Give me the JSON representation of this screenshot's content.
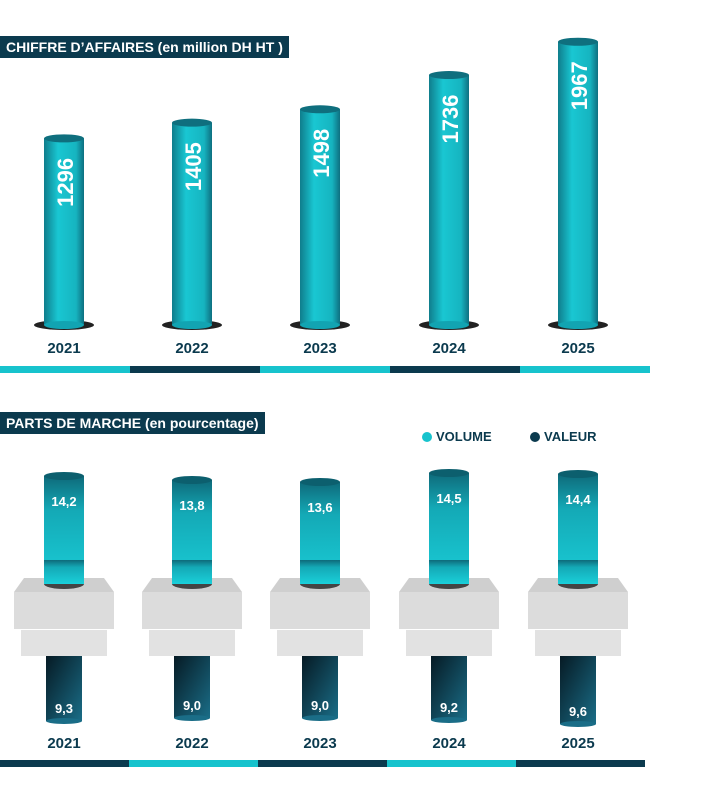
{
  "colors": {
    "dark": "#0b3a4e",
    "cyan": "#17c3cd"
  },
  "chart_data": [
    {
      "type": "bar",
      "title": "CHIFFRE D’AFFAIRES (en million DH HT )",
      "categories": [
        "2021",
        "2022",
        "2023",
        "2024",
        "2025"
      ],
      "values": [
        1296,
        1405,
        1498,
        1736,
        1967
      ],
      "value_labels": [
        "1296",
        "1405",
        "1498",
        "1736",
        "1967"
      ]
    },
    {
      "type": "bar",
      "title": "PARTS DE MARCHE (en pourcentage)",
      "legend_position": "top-right",
      "categories": [
        "2021",
        "2022",
        "2023",
        "2024",
        "2025"
      ],
      "series": [
        {
          "name": "VOLUME",
          "values": [
            14.2,
            13.8,
            13.6,
            14.5,
            14.4
          ],
          "labels": [
            "14,2",
            "13,8",
            "13,6",
            "14,5",
            "14,4"
          ]
        },
        {
          "name": "VALEUR",
          "values": [
            9.3,
            9.0,
            9.0,
            9.2,
            9.6
          ],
          "labels": [
            "9,3",
            "9,0",
            "9,0",
            "9,2",
            "9,6"
          ]
        }
      ]
    }
  ]
}
